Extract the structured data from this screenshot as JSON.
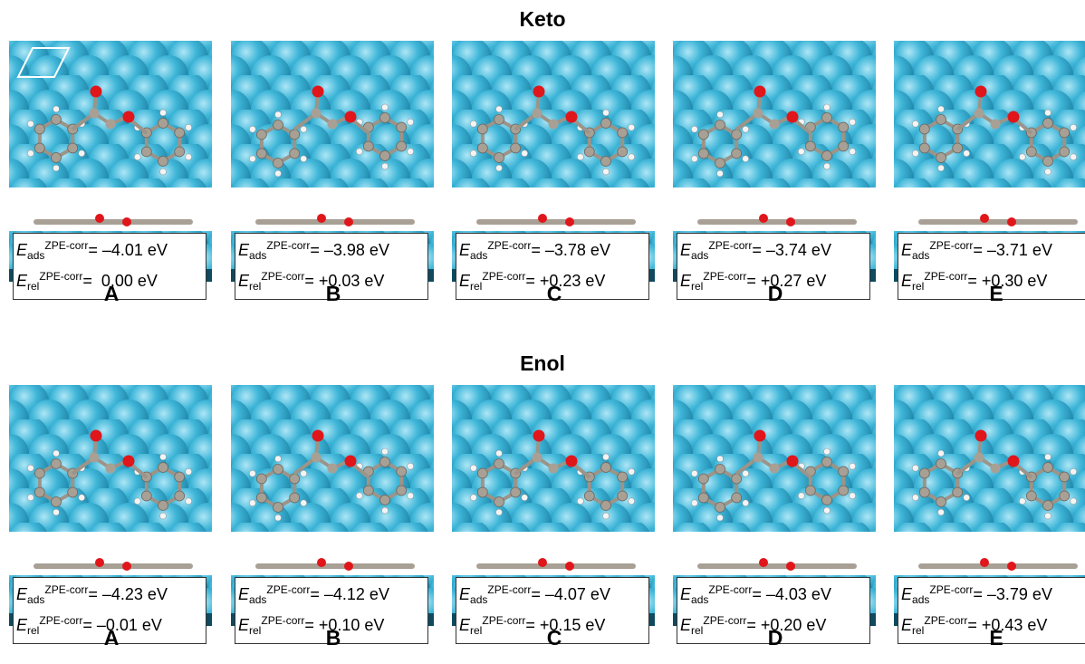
{
  "sections": [
    {
      "title": "Keto",
      "panels": [
        {
          "label": "A",
          "ads": {
            "symbol": "E",
            "sub": "ads",
            "sup": "ZPE-corr",
            "value": "= –4.01 eV"
          },
          "rel": {
            "symbol": "E",
            "sub": "rel",
            "sup": "ZPE-corr",
            "value": "=  0.00 eV"
          }
        },
        {
          "label": "B",
          "ads": {
            "symbol": "E",
            "sub": "ads",
            "sup": "ZPE-corr",
            "value": "= –3.98 eV"
          },
          "rel": {
            "symbol": "E",
            "sub": "rel",
            "sup": "ZPE-corr",
            "value": "= +0.03 eV"
          }
        },
        {
          "label": "C",
          "ads": {
            "symbol": "E",
            "sub": "ads",
            "sup": "ZPE-corr",
            "value": "= –3.78 eV"
          },
          "rel": {
            "symbol": "E",
            "sub": "rel",
            "sup": "ZPE-corr",
            "value": "= +0.23 eV"
          }
        },
        {
          "label": "D",
          "ads": {
            "symbol": "E",
            "sub": "ads",
            "sup": "ZPE-corr",
            "value": "= –3.74 eV"
          },
          "rel": {
            "symbol": "E",
            "sub": "rel",
            "sup": "ZPE-corr",
            "value": "= +0.27 eV"
          }
        },
        {
          "label": "E",
          "ads": {
            "symbol": "E",
            "sub": "ads",
            "sup": "ZPE-corr",
            "value": "= –3.71 eV"
          },
          "rel": {
            "symbol": "E",
            "sub": "rel",
            "sup": "ZPE-corr",
            "value": "= +0.30 eV"
          }
        }
      ]
    },
    {
      "title": "Enol",
      "panels": [
        {
          "label": "A",
          "ads": {
            "symbol": "E",
            "sub": "ads",
            "sup": "ZPE-corr",
            "value": "= –4.23 eV"
          },
          "rel": {
            "symbol": "E",
            "sub": "rel",
            "sup": "ZPE-corr",
            "value": "= –0.01 eV"
          }
        },
        {
          "label": "B",
          "ads": {
            "symbol": "E",
            "sub": "ads",
            "sup": "ZPE-corr",
            "value": "= –4.12 eV"
          },
          "rel": {
            "symbol": "E",
            "sub": "rel",
            "sup": "ZPE-corr",
            "value": "= +0.10 eV"
          }
        },
        {
          "label": "C",
          "ads": {
            "symbol": "E",
            "sub": "ads",
            "sup": "ZPE-corr",
            "value": "= –4.07 eV"
          },
          "rel": {
            "symbol": "E",
            "sub": "rel",
            "sup": "ZPE-corr",
            "value": "= +0.15 eV"
          }
        },
        {
          "label": "D",
          "ads": {
            "symbol": "E",
            "sub": "ads",
            "sup": "ZPE-corr",
            "value": "= –4.03 eV"
          },
          "rel": {
            "symbol": "E",
            "sub": "rel",
            "sup": "ZPE-corr",
            "value": "= +0.20 eV"
          }
        },
        {
          "label": "E",
          "ads": {
            "symbol": "E",
            "sub": "ads",
            "sup": "ZPE-corr",
            "value": "= –3.79 eV"
          },
          "rel": {
            "symbol": "E",
            "sub": "rel",
            "sup": "ZPE-corr",
            "value": "= +0.43 eV"
          }
        }
      ]
    }
  ]
}
